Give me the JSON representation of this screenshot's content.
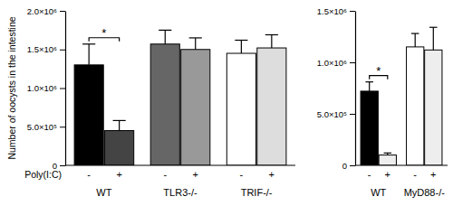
{
  "chart_data": [
    {
      "type": "bar",
      "y_label": "Number of oocysts in the intestine",
      "x_label": "Poly(I:C)",
      "categories": [
        "-",
        "+",
        "-",
        "+",
        "-",
        "+"
      ],
      "category_groups": [
        "WT",
        "WT",
        "TLR3-/-",
        "TLR3-/-",
        "TRIF-/-",
        "TRIF-/-"
      ],
      "values": [
        1300000,
        450000,
        1570000,
        1500000,
        1450000,
        1520000
      ],
      "errors": [
        270000,
        130000,
        180000,
        150000,
        170000,
        170000
      ],
      "colors": [
        "#000000",
        "#444444",
        "#666666",
        "#999999",
        "#ffffff",
        "#dddddd"
      ],
      "ylim": [
        0,
        2000000
      ],
      "yticks": [
        0,
        {
          "value": 500000,
          "label": "5.0×10⁵"
        },
        {
          "value": 1000000,
          "label": "1.0×10⁶"
        },
        {
          "value": 1500000,
          "label": "1.5×10⁶"
        },
        {
          "value": 2000000,
          "label": "2.0×10⁶"
        }
      ],
      "annotations": [
        {
          "text": "*",
          "categories": [
            0,
            1
          ]
        }
      ]
    },
    {
      "type": "bar",
      "categories": [
        "-",
        "+",
        "-",
        "+"
      ],
      "category_groups": [
        "WT",
        "WT",
        "MyD88-/-",
        "MyD88-/-"
      ],
      "values": [
        720000,
        100000,
        1150000,
        1120000
      ],
      "errors": [
        90000,
        20000,
        130000,
        220000
      ],
      "colors": [
        "#000000",
        "#eeeeee",
        "#ffffff",
        "#eeeeee"
      ],
      "ylim": [
        0,
        1500000
      ],
      "yticks": [
        0,
        {
          "value": 500000,
          "label": "5.0×10⁵"
        },
        {
          "value": 1000000,
          "label": "1.0×10⁶"
        },
        {
          "value": 1500000,
          "label": "1.5×10⁶"
        }
      ],
      "annotations": [
        {
          "text": "*",
          "categories": [
            0,
            1
          ]
        }
      ]
    }
  ]
}
